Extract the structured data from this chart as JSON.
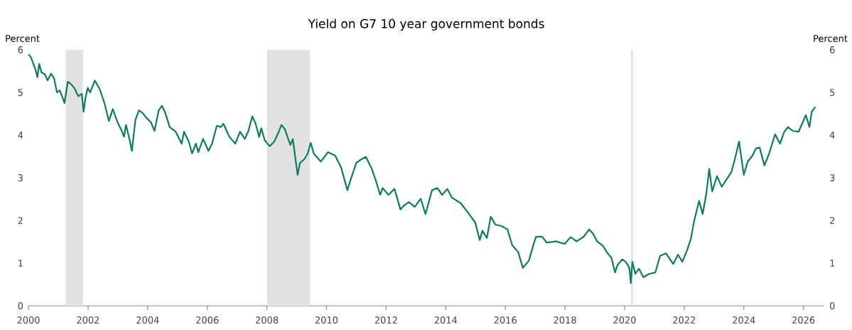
{
  "chart_data": {
    "type": "line",
    "title": "Yield on G7 10 year government bonds",
    "ylabel": "Percent",
    "y2label": "Percent",
    "x": [
      2000.0,
      2000.08,
      2000.24,
      2000.3,
      2000.36,
      2000.44,
      2000.56,
      2000.64,
      2000.76,
      2000.86,
      2000.96,
      2001.05,
      2001.13,
      2001.21,
      2001.32,
      2001.44,
      2001.56,
      2001.67,
      2001.79,
      2001.85,
      2001.91,
      2001.99,
      2002.07,
      2002.23,
      2002.39,
      2002.55,
      2002.7,
      2002.83,
      2002.99,
      2003.11,
      2003.21,
      2003.27,
      2003.39,
      2003.47,
      2003.59,
      2003.71,
      2003.83,
      2003.95,
      2004.11,
      2004.23,
      2004.37,
      2004.48,
      2004.59,
      2004.74,
      2004.94,
      2005.14,
      2005.22,
      2005.38,
      2005.49,
      2005.62,
      2005.7,
      2005.86,
      2006.04,
      2006.16,
      2006.32,
      2006.46,
      2006.54,
      2006.74,
      2006.94,
      2007.1,
      2007.26,
      2007.38,
      2007.51,
      2007.62,
      2007.74,
      2007.81,
      2007.93,
      2008.09,
      2008.25,
      2008.36,
      2008.49,
      2008.61,
      2008.69,
      2008.79,
      2008.87,
      2009.03,
      2009.11,
      2009.25,
      2009.37,
      2009.47,
      2009.57,
      2009.81,
      2010.05,
      2010.29,
      2010.49,
      2010.7,
      2010.81,
      2011.0,
      2011.16,
      2011.32,
      2011.52,
      2011.68,
      2011.8,
      2011.88,
      2012.08,
      2012.28,
      2012.48,
      2012.6,
      2012.76,
      2012.96,
      2013.16,
      2013.32,
      2013.4,
      2013.54,
      2013.72,
      2013.88,
      2014.05,
      2014.2,
      2014.51,
      2014.75,
      2014.99,
      2015.14,
      2015.23,
      2015.38,
      2015.51,
      2015.67,
      2015.87,
      2016.07,
      2016.23,
      2016.43,
      2016.59,
      2016.79,
      2016.95,
      2017.03,
      2017.23,
      2017.39,
      2017.71,
      2017.99,
      2018.19,
      2018.39,
      2018.63,
      2018.81,
      2018.93,
      2019.08,
      2019.28,
      2019.4,
      2019.56,
      2019.68,
      2019.76,
      2019.92,
      2020.04,
      2020.16,
      2020.21,
      2020.26,
      2020.36,
      2020.48,
      2020.63,
      2020.83,
      2021.03,
      2021.19,
      2021.39,
      2021.63,
      2021.79,
      2021.94,
      2022.1,
      2022.22,
      2022.34,
      2022.5,
      2022.62,
      2022.74,
      2022.84,
      2022.94,
      2023.1,
      2023.26,
      2023.42,
      2023.58,
      2023.69,
      2023.84,
      2024.0,
      2024.13,
      2024.29,
      2024.41,
      2024.53,
      2024.69,
      2024.85,
      2025.05,
      2025.21,
      2025.36,
      2025.48,
      2025.64,
      2025.84,
      2026.08,
      2026.2,
      2026.28,
      2026.4
    ],
    "series": [
      {
        "color": "#0e7a5f",
        "values": [
          5.89,
          5.83,
          5.53,
          5.36,
          5.67,
          5.47,
          5.42,
          5.28,
          5.44,
          5.33,
          5.0,
          5.05,
          4.91,
          4.75,
          5.25,
          5.19,
          5.08,
          4.91,
          4.97,
          4.55,
          4.86,
          5.11,
          5.0,
          5.28,
          5.08,
          4.75,
          4.33,
          4.61,
          4.3,
          4.13,
          3.96,
          4.24,
          3.91,
          3.63,
          4.36,
          4.58,
          4.52,
          4.41,
          4.3,
          4.1,
          4.58,
          4.69,
          4.52,
          4.19,
          4.08,
          3.8,
          4.08,
          3.85,
          3.57,
          3.8,
          3.6,
          3.91,
          3.63,
          3.8,
          4.22,
          4.19,
          4.27,
          3.96,
          3.8,
          4.08,
          3.91,
          4.1,
          4.44,
          4.27,
          3.96,
          4.16,
          3.88,
          3.74,
          3.85,
          4.02,
          4.24,
          4.13,
          3.96,
          3.77,
          3.91,
          3.07,
          3.35,
          3.43,
          3.57,
          3.82,
          3.57,
          3.38,
          3.6,
          3.52,
          3.24,
          2.71,
          2.96,
          3.35,
          3.43,
          3.49,
          3.21,
          2.88,
          2.6,
          2.76,
          2.6,
          2.74,
          2.26,
          2.35,
          2.43,
          2.32,
          2.51,
          2.15,
          2.35,
          2.71,
          2.76,
          2.6,
          2.74,
          2.54,
          2.4,
          2.18,
          1.95,
          1.54,
          1.76,
          1.59,
          2.09,
          1.9,
          1.87,
          1.79,
          1.42,
          1.26,
          0.89,
          1.06,
          1.45,
          1.62,
          1.62,
          1.48,
          1.51,
          1.45,
          1.61,
          1.51,
          1.62,
          1.79,
          1.7,
          1.51,
          1.4,
          1.26,
          1.12,
          0.78,
          0.95,
          1.09,
          1.03,
          0.89,
          0.53,
          1.03,
          0.75,
          0.87,
          0.67,
          0.75,
          0.78,
          1.17,
          1.23,
          0.98,
          1.2,
          1.03,
          1.31,
          1.56,
          2.01,
          2.46,
          2.15,
          2.62,
          3.21,
          2.68,
          3.04,
          2.79,
          2.96,
          3.13,
          3.41,
          3.85,
          3.07,
          3.38,
          3.52,
          3.69,
          3.71,
          3.29,
          3.57,
          4.02,
          3.8,
          4.08,
          4.19,
          4.1,
          4.08,
          4.47,
          4.19,
          4.55,
          4.66
        ]
      }
    ],
    "xlim": [
      2000,
      2026.7
    ],
    "xticks": [
      2000,
      2002,
      2004,
      2006,
      2008,
      2010,
      2012,
      2014,
      2016,
      2018,
      2020,
      2022,
      2024,
      2026
    ],
    "ylim": [
      0,
      6
    ],
    "yticks": [
      0,
      1,
      2,
      3,
      4,
      5,
      6
    ],
    "y2lim": [
      0,
      6
    ],
    "y2ticks": [
      0,
      1,
      2,
      3,
      4,
      5,
      6
    ],
    "bands": [
      {
        "axis": "x",
        "from": 2001.25,
        "to": 2001.83,
        "color": "#e1e3e2"
      },
      {
        "axis": "x",
        "from": 2008.0,
        "to": 2009.45,
        "color": "#e1e3e2"
      }
    ],
    "ref_lines": [
      {
        "axis": "x",
        "value": 2020.25,
        "color": "#d4d4d4"
      }
    ],
    "line_style": "solid"
  }
}
